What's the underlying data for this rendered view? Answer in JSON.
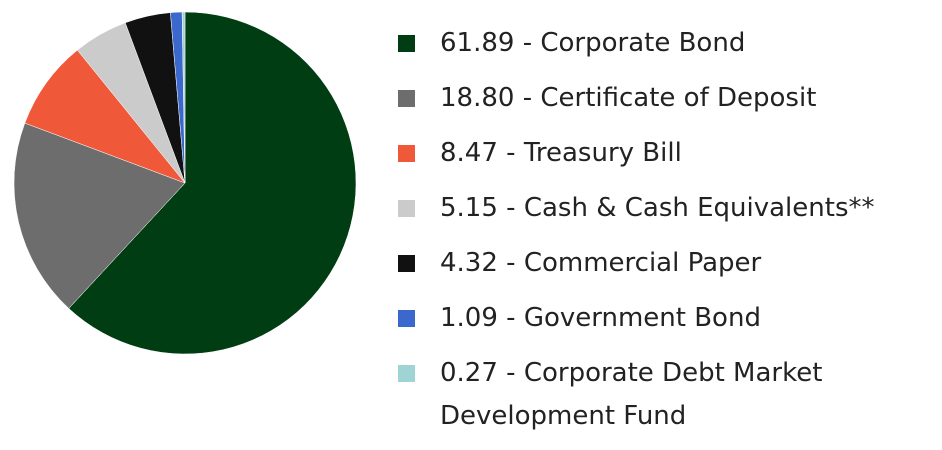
{
  "chart_data": {
    "type": "pie",
    "categories": [
      "Corporate Bond",
      "Certificate of Deposit",
      "Treasury Bill",
      "Cash & Cash Equivalents**",
      "Commercial Paper",
      "Government Bond",
      "Corporate Debt Market Development Fund"
    ],
    "values": [
      61.89,
      18.8,
      8.47,
      5.15,
      4.32,
      1.09,
      0.27
    ],
    "value_labels": [
      "61.89",
      "18.80",
      "8.47",
      "5.15",
      "4.32",
      "1.09",
      "0.27"
    ],
    "label_separator": " - ",
    "colors": [
      "#003d12",
      "#6d6d6d",
      "#f0583a",
      "#cbcbcb",
      "#111111",
      "#3a68cc",
      "#9fd4d4"
    ]
  }
}
